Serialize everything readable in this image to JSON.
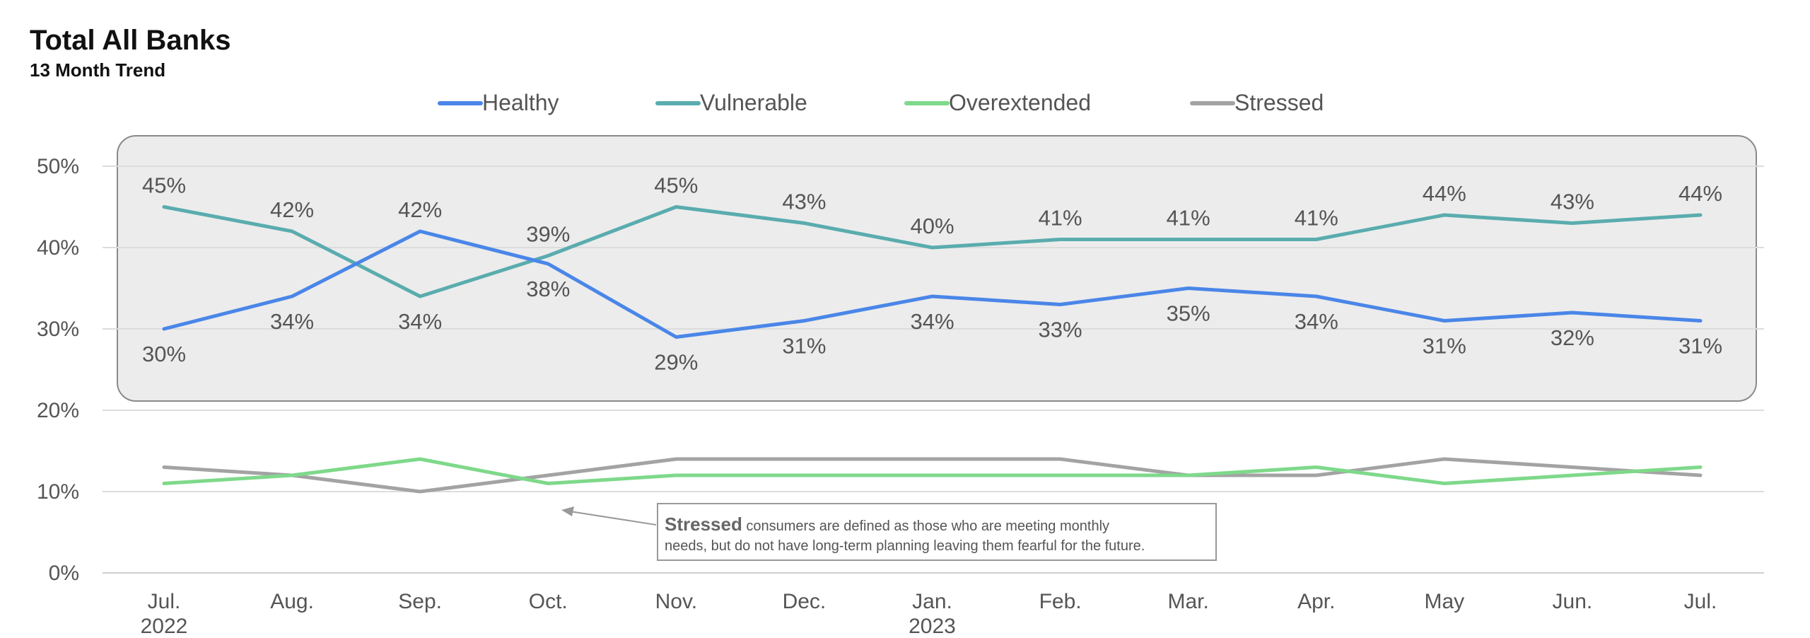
{
  "chart_data": {
    "type": "line",
    "title": "Total All Banks",
    "subtitle": "13 Month Trend",
    "categories": [
      "Jul.",
      "Aug.",
      "Sep.",
      "Oct.",
      "Nov.",
      "Dec.",
      "Jan.",
      "Feb.",
      "Mar.",
      "Apr.",
      "May",
      "Jun.",
      "Jul."
    ],
    "category_years": [
      "2022",
      "",
      "",
      "",
      "",
      "",
      "2023",
      "",
      "",
      "",
      "",
      "",
      ""
    ],
    "y_ticks": [
      "0%",
      "10%",
      "20%",
      "30%",
      "40%",
      "50%"
    ],
    "ylim": [
      0,
      50
    ],
    "grid": true,
    "legend_position": "top",
    "series": [
      {
        "name": "Healthy",
        "color": "#4a86e8",
        "values": [
          30,
          34,
          42,
          38,
          29,
          31,
          34,
          33,
          35,
          34,
          31,
          32,
          31
        ],
        "labels": [
          "30%",
          "34%",
          "42%",
          "38%",
          "29%",
          "31%",
          "34%",
          "33%",
          "35%",
          "34%",
          "31%",
          "32%",
          "31%"
        ]
      },
      {
        "name": "Vulnerable",
        "color": "#5aacae",
        "values": [
          45,
          42,
          34,
          39,
          45,
          43,
          40,
          41,
          41,
          41,
          44,
          43,
          44
        ],
        "labels": [
          "45%",
          "42%",
          "34%",
          "39%",
          "45%",
          "43%",
          "40%",
          "41%",
          "41%",
          "41%",
          "44%",
          "43%",
          "44%"
        ]
      },
      {
        "name": "Overextended",
        "color": "#7ed98a",
        "values": [
          11,
          12,
          14,
          11,
          12,
          12,
          12,
          12,
          12,
          13,
          11,
          12,
          13
        ]
      },
      {
        "name": "Stressed",
        "color": "#a3a3a3",
        "values": [
          13,
          12,
          10,
          12,
          14,
          14,
          14,
          14,
          12,
          12,
          14,
          13,
          12
        ]
      }
    ],
    "annotation": {
      "bold": "Stressed",
      "line1": " consumers are defined as those who are meeting monthly",
      "line2": "needs, but do not have long-term planning leaving them fearful for the future."
    }
  }
}
